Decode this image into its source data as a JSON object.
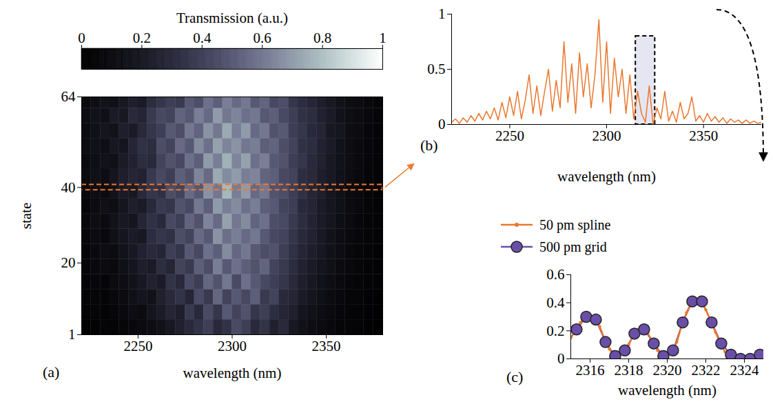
{
  "chart_data": [
    {
      "type": "heatmap",
      "label": "(a)",
      "x_label": "wavelength (nm)",
      "y_label": "state",
      "x_bins": [
        2220,
        2225,
        2230,
        2235,
        2240,
        2245,
        2250,
        2255,
        2260,
        2265,
        2270,
        2275,
        2280,
        2285,
        2290,
        2295,
        2300,
        2305,
        2310,
        2315,
        2320,
        2325,
        2330,
        2335,
        2340,
        2345,
        2350,
        2355,
        2360,
        2365,
        2370,
        2375,
        2380
      ],
      "y_bins": [
        1,
        5,
        9,
        13,
        17,
        21,
        25,
        29,
        33,
        37,
        41,
        45,
        49,
        53,
        57,
        61,
        64
      ],
      "values": [
        [
          0.02,
          0.03,
          0.05,
          0.04,
          0.06,
          0.08,
          0.1,
          0.12,
          0.15,
          0.2,
          0.25,
          0.3,
          0.35,
          0.4,
          0.3,
          0.35,
          0.45,
          0.4,
          0.3,
          0.35,
          0.25,
          0.3,
          0.2,
          0.15,
          0.12,
          0.1,
          0.08,
          0.06,
          0.05,
          0.04,
          0.03,
          0.02
        ],
        [
          0.03,
          0.05,
          0.04,
          0.07,
          0.09,
          0.12,
          0.1,
          0.18,
          0.22,
          0.28,
          0.24,
          0.38,
          0.3,
          0.45,
          0.36,
          0.5,
          0.42,
          0.48,
          0.36,
          0.4,
          0.32,
          0.28,
          0.25,
          0.18,
          0.15,
          0.12,
          0.09,
          0.07,
          0.05,
          0.04,
          0.03,
          0.02
        ],
        [
          0.04,
          0.06,
          0.05,
          0.08,
          0.1,
          0.14,
          0.18,
          0.16,
          0.25,
          0.3,
          0.35,
          0.28,
          0.45,
          0.38,
          0.55,
          0.42,
          0.5,
          0.44,
          0.52,
          0.38,
          0.42,
          0.3,
          0.28,
          0.22,
          0.18,
          0.14,
          0.1,
          0.08,
          0.06,
          0.05,
          0.03,
          0.02
        ],
        [
          0.05,
          0.07,
          0.06,
          0.1,
          0.12,
          0.16,
          0.2,
          0.26,
          0.22,
          0.35,
          0.3,
          0.45,
          0.4,
          0.55,
          0.48,
          0.6,
          0.45,
          0.58,
          0.5,
          0.44,
          0.4,
          0.36,
          0.3,
          0.24,
          0.2,
          0.16,
          0.12,
          0.09,
          0.07,
          0.05,
          0.04,
          0.03
        ],
        [
          0.06,
          0.08,
          0.1,
          0.09,
          0.14,
          0.18,
          0.24,
          0.22,
          0.32,
          0.28,
          0.42,
          0.38,
          0.52,
          0.46,
          0.62,
          0.5,
          0.58,
          0.52,
          0.48,
          0.54,
          0.42,
          0.38,
          0.32,
          0.26,
          0.22,
          0.18,
          0.14,
          0.1,
          0.08,
          0.06,
          0.04,
          0.03
        ],
        [
          0.05,
          0.09,
          0.12,
          0.1,
          0.16,
          0.2,
          0.26,
          0.3,
          0.28,
          0.4,
          0.36,
          0.5,
          0.44,
          0.58,
          0.52,
          0.66,
          0.55,
          0.6,
          0.5,
          0.46,
          0.48,
          0.4,
          0.34,
          0.28,
          0.24,
          0.2,
          0.15,
          0.12,
          0.08,
          0.06,
          0.05,
          0.03
        ],
        [
          0.07,
          0.1,
          0.08,
          0.14,
          0.18,
          0.22,
          0.2,
          0.32,
          0.36,
          0.34,
          0.46,
          0.42,
          0.56,
          0.5,
          0.68,
          0.58,
          0.62,
          0.56,
          0.6,
          0.5,
          0.44,
          0.42,
          0.36,
          0.3,
          0.26,
          0.21,
          0.16,
          0.12,
          0.09,
          0.07,
          0.05,
          0.04
        ],
        [
          0.08,
          0.12,
          0.1,
          0.16,
          0.2,
          0.18,
          0.28,
          0.34,
          0.3,
          0.44,
          0.4,
          0.54,
          0.48,
          0.64,
          0.56,
          0.72,
          0.6,
          0.66,
          0.54,
          0.58,
          0.46,
          0.44,
          0.38,
          0.32,
          0.27,
          0.22,
          0.18,
          0.13,
          0.1,
          0.07,
          0.05,
          0.04
        ],
        [
          0.06,
          0.1,
          0.14,
          0.12,
          0.18,
          0.24,
          0.22,
          0.3,
          0.38,
          0.36,
          0.48,
          0.44,
          0.6,
          0.52,
          0.7,
          0.62,
          0.66,
          0.58,
          0.62,
          0.52,
          0.5,
          0.42,
          0.4,
          0.3,
          0.28,
          0.22,
          0.18,
          0.14,
          0.1,
          0.08,
          0.06,
          0.04
        ],
        [
          0.08,
          0.12,
          0.1,
          0.16,
          0.22,
          0.2,
          0.3,
          0.36,
          0.34,
          0.46,
          0.42,
          0.56,
          0.5,
          0.68,
          0.6,
          0.78,
          0.62,
          0.7,
          0.56,
          0.6,
          0.48,
          0.46,
          0.4,
          0.34,
          0.28,
          0.24,
          0.18,
          0.14,
          0.1,
          0.08,
          0.06,
          0.04
        ],
        [
          0.1,
          0.14,
          0.12,
          0.18,
          0.24,
          0.28,
          0.26,
          0.38,
          0.44,
          0.4,
          0.52,
          0.48,
          0.64,
          0.56,
          0.74,
          0.66,
          0.7,
          0.62,
          0.64,
          0.54,
          0.52,
          0.44,
          0.42,
          0.32,
          0.3,
          0.24,
          0.2,
          0.15,
          0.11,
          0.08,
          0.06,
          0.05
        ],
        [
          0.09,
          0.13,
          0.16,
          0.14,
          0.22,
          0.26,
          0.32,
          0.3,
          0.42,
          0.48,
          0.44,
          0.58,
          0.52,
          0.7,
          0.62,
          0.76,
          0.64,
          0.72,
          0.58,
          0.62,
          0.5,
          0.48,
          0.4,
          0.36,
          0.3,
          0.26,
          0.2,
          0.16,
          0.12,
          0.09,
          0.07,
          0.05
        ],
        [
          0.11,
          0.15,
          0.13,
          0.2,
          0.18,
          0.28,
          0.34,
          0.32,
          0.46,
          0.42,
          0.56,
          0.5,
          0.66,
          0.58,
          0.72,
          0.64,
          0.68,
          0.6,
          0.62,
          0.52,
          0.54,
          0.46,
          0.42,
          0.34,
          0.32,
          0.26,
          0.22,
          0.16,
          0.12,
          0.09,
          0.07,
          0.05
        ],
        [
          0.1,
          0.14,
          0.18,
          0.16,
          0.24,
          0.22,
          0.3,
          0.36,
          0.4,
          0.5,
          0.46,
          0.6,
          0.54,
          0.68,
          0.6,
          0.74,
          0.62,
          0.7,
          0.56,
          0.6,
          0.48,
          0.5,
          0.4,
          0.36,
          0.3,
          0.28,
          0.2,
          0.18,
          0.12,
          0.1,
          0.07,
          0.05
        ],
        [
          0.12,
          0.16,
          0.14,
          0.22,
          0.2,
          0.3,
          0.28,
          0.38,
          0.44,
          0.42,
          0.54,
          0.5,
          0.62,
          0.56,
          0.7,
          0.6,
          0.64,
          0.58,
          0.6,
          0.5,
          0.52,
          0.44,
          0.4,
          0.34,
          0.32,
          0.26,
          0.22,
          0.16,
          0.13,
          0.1,
          0.08,
          0.06
        ],
        [
          0.1,
          0.13,
          0.16,
          0.14,
          0.2,
          0.24,
          0.22,
          0.32,
          0.36,
          0.4,
          0.38,
          0.5,
          0.46,
          0.58,
          0.52,
          0.62,
          0.56,
          0.6,
          0.5,
          0.54,
          0.44,
          0.46,
          0.36,
          0.32,
          0.28,
          0.24,
          0.2,
          0.16,
          0.12,
          0.1,
          0.08,
          0.06
        ]
      ],
      "xlim": [
        2220,
        2380
      ],
      "xticks": [
        2250,
        2300,
        2350
      ],
      "ylim": [
        1,
        64
      ],
      "yticks": [
        1,
        20,
        40,
        64
      ],
      "color_label": "Transmission (a.u.)",
      "color_range": [
        0,
        1
      ],
      "color_ticks": [
        0,
        0.2,
        0.4,
        0.6,
        0.8,
        1
      ],
      "selected_state": 40
    },
    {
      "type": "line",
      "label": "(b)",
      "x_label": "wavelength (nm)",
      "color": "#e8772e",
      "x": [
        2220,
        2222,
        2224,
        2226,
        2228,
        2230,
        2232,
        2234,
        2236,
        2238,
        2240,
        2242,
        2244,
        2246,
        2248,
        2250,
        2252,
        2254,
        2256,
        2258,
        2260,
        2262,
        2264,
        2266,
        2268,
        2270,
        2272,
        2274,
        2276,
        2278,
        2280,
        2282,
        2284,
        2286,
        2288,
        2290,
        2292,
        2294,
        2296,
        2298,
        2300,
        2302,
        2304,
        2306,
        2308,
        2310,
        2312,
        2314,
        2316,
        2318,
        2320,
        2322,
        2324,
        2326,
        2328,
        2330,
        2332,
        2334,
        2336,
        2338,
        2340,
        2342,
        2344,
        2346,
        2348,
        2350,
        2352,
        2354,
        2356,
        2358,
        2360,
        2362,
        2364,
        2366,
        2368,
        2370,
        2372,
        2374,
        2376,
        2378,
        2380
      ],
      "values": [
        0.02,
        0.05,
        0.01,
        0.06,
        0.02,
        0.08,
        0.03,
        0.1,
        0.04,
        0.12,
        0.05,
        0.15,
        0.04,
        0.2,
        0.06,
        0.25,
        0.08,
        0.3,
        0.05,
        0.22,
        0.45,
        0.1,
        0.35,
        0.08,
        0.3,
        0.5,
        0.12,
        0.4,
        0.15,
        0.75,
        0.2,
        0.55,
        0.1,
        0.65,
        0.25,
        0.55,
        0.15,
        0.45,
        0.95,
        0.2,
        0.75,
        0.1,
        0.6,
        0.25,
        0.5,
        0.1,
        0.45,
        0.05,
        0.3,
        0.1,
        0.02,
        0.35,
        0.0,
        0.15,
        0.05,
        0.3,
        0.03,
        0.12,
        0.02,
        0.2,
        0.05,
        0.1,
        0.25,
        0.03,
        0.08,
        0.02,
        0.1,
        0.03,
        0.07,
        0.02,
        0.06,
        0.01,
        0.05,
        0.02,
        0.04,
        0.01,
        0.04,
        0.01,
        0.03,
        0.01,
        0.02
      ],
      "zoom_box": {
        "x": [
          2315,
          2325
        ],
        "y": [
          0,
          0.8
        ]
      },
      "xlim": [
        2220,
        2380
      ],
      "xticks": [
        2250,
        2300,
        2350
      ],
      "ylim": [
        0,
        1
      ],
      "yticks": [
        0,
        0.5,
        1
      ]
    },
    {
      "type": "line",
      "label": "(c)",
      "x_label": "wavelength (nm)",
      "legend": "top",
      "series": [
        {
          "name": "50 pm spline",
          "color": "#e8772e",
          "marker": "dot",
          "line_style": "solid",
          "x": [
            2315,
            2315.25,
            2315.5,
            2315.75,
            2316,
            2316.25,
            2316.5,
            2316.75,
            2317,
            2317.25,
            2317.5,
            2317.75,
            2318,
            2318.25,
            2318.5,
            2318.75,
            2319,
            2319.25,
            2319.5,
            2319.75,
            2320,
            2320.25,
            2320.5,
            2320.75,
            2321,
            2321.25,
            2321.5,
            2321.75,
            2322,
            2322.25,
            2322.5,
            2322.75,
            2323,
            2323.25,
            2323.5,
            2323.75,
            2324,
            2324.25,
            2324.5,
            2324.75,
            2325
          ],
          "values": [
            0.15,
            0.2,
            0.26,
            0.3,
            0.3,
            0.28,
            0.23,
            0.14,
            0.07,
            0.02,
            0.02,
            0.05,
            0.1,
            0.17,
            0.21,
            0.21,
            0.18,
            0.12,
            0.06,
            0.02,
            0.02,
            0.05,
            0.12,
            0.24,
            0.33,
            0.4,
            0.42,
            0.41,
            0.35,
            0.27,
            0.19,
            0.11,
            0.05,
            0.02,
            0.01,
            0.0,
            0.0,
            0.0,
            0.01,
            0.03,
            0.04
          ]
        },
        {
          "name": "500 pm grid",
          "color": "#6a4fa8",
          "marker": "circle",
          "line_style": "solid",
          "x": [
            2315.3,
            2315.8,
            2316.3,
            2316.8,
            2317.3,
            2317.8,
            2318.3,
            2318.8,
            2319.3,
            2319.8,
            2320.3,
            2320.8,
            2321.3,
            2321.8,
            2322.3,
            2322.8,
            2323.3,
            2323.8,
            2324.3,
            2324.8
          ],
          "values": [
            0.21,
            0.3,
            0.28,
            0.12,
            0.02,
            0.06,
            0.18,
            0.21,
            0.11,
            0.02,
            0.06,
            0.26,
            0.41,
            0.41,
            0.26,
            0.11,
            0.03,
            0.0,
            0.0,
            0.03
          ]
        }
      ],
      "xlim": [
        2315,
        2325
      ],
      "xticks": [
        2316,
        2318,
        2320,
        2322,
        2324
      ],
      "ylim": [
        0,
        0.6
      ],
      "yticks": [
        0,
        0.2,
        0.4,
        0.6
      ]
    }
  ]
}
